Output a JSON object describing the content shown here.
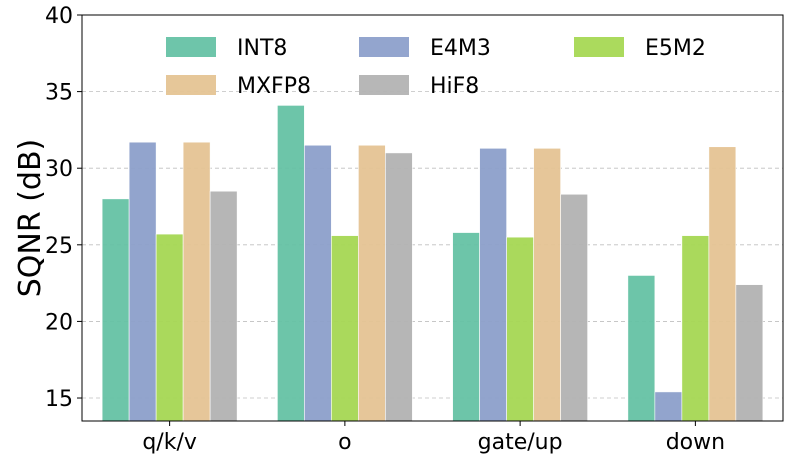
{
  "chart_data": {
    "type": "bar",
    "title": "",
    "xlabel": "",
    "ylabel": "SQNR (dB)",
    "ylim": [
      13.5,
      40
    ],
    "yticks": [
      15,
      20,
      25,
      30,
      35,
      40
    ],
    "grid": "y-dashed",
    "legend_position": "top",
    "categories": [
      "q/k/v",
      "o",
      "gate/up",
      "down"
    ],
    "series": [
      {
        "name": "INT8",
        "color": "#66c2a5",
        "values": [
          28.0,
          34.1,
          25.8,
          23.0
        ]
      },
      {
        "name": "E4M3",
        "color": "#8da0cb",
        "values": [
          31.7,
          31.5,
          31.3,
          15.4
        ]
      },
      {
        "name": "E5M2",
        "color": "#a6d854",
        "values": [
          25.7,
          25.6,
          25.5,
          25.6
        ]
      },
      {
        "name": "MXFP8",
        "color": "#e5c494",
        "values": [
          31.7,
          31.5,
          31.3,
          31.4
        ]
      },
      {
        "name": "HiF8",
        "color": "#b3b3b3",
        "values": [
          28.5,
          31.0,
          28.3,
          22.4
        ]
      }
    ]
  }
}
